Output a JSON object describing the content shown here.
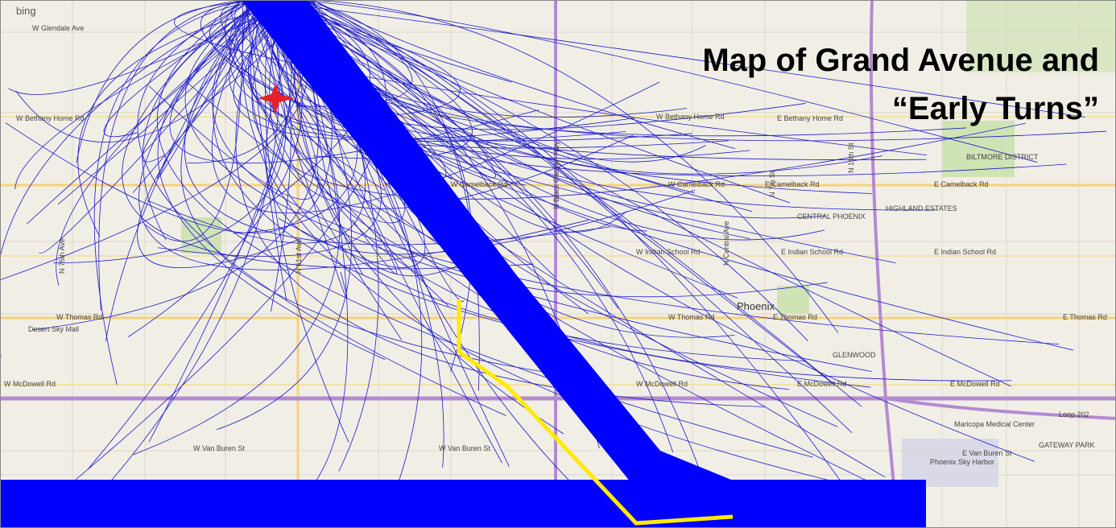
{
  "title": {
    "line1": "Map of Grand Avenue and",
    "line2": "“Early Turns”"
  },
  "map": {
    "brand": "bing",
    "labels": [
      "W Glendale Ave",
      "W Bethany Home Rd",
      "W Bethany Home Rd",
      "E Bethany Home Rd",
      "W Camelback Rd",
      "W Camelback Rd",
      "E Camelback Rd",
      "E Camelback Rd",
      "W Indian School Rd",
      "E Indian School Rd",
      "E Indian School Rd",
      "W Thomas Rd",
      "W Thomas Rd",
      "E Thomas Rd",
      "E Thomas Rd",
      "W McDowell Rd",
      "W McDowell Rd",
      "E McDowell Rd",
      "E McDowell Rd",
      "W Van Buren St",
      "W Van Buren St",
      "E Van Buren St",
      "Phoenix",
      "N Black Canyon Hwy",
      "Desert Sky Mall",
      "Maricopa Medical Center",
      "Phoenix Sky Harbor",
      "GLENWOOD",
      "BILTMORE DISTRICT",
      "HIGHLAND ESTATES",
      "CENTRAL PHOENIX",
      "GATEWAY PARK",
      "Loop 202",
      "N 16th St",
      "N 7th St",
      "N Central Ave",
      "N 75th Ave",
      "N 51st Ave"
    ]
  }
}
